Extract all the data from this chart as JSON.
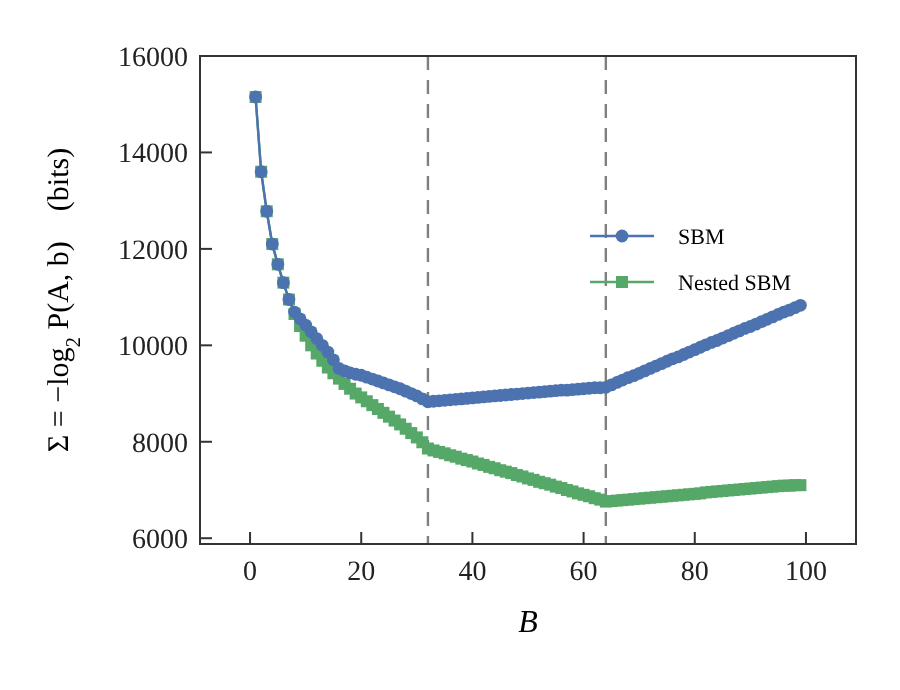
{
  "chart_data": {
    "type": "line",
    "xlabel": "B",
    "ylabel": "Σ = −log$_{2}$ P(A, b)    (bits)",
    "xlim": [
      -9,
      109
    ],
    "ylim": [
      5880,
      16000
    ],
    "xticks": [
      0,
      20,
      40,
      60,
      80,
      100
    ],
    "yticks": [
      6000,
      8000,
      10000,
      12000,
      14000,
      16000
    ],
    "grid": false,
    "legend": "right",
    "line_style": "solid",
    "ref_lines": [
      {
        "axis": "x",
        "value": 32,
        "color": "#7f7f7f",
        "line_style": "dashed"
      },
      {
        "axis": "x",
        "value": 64,
        "color": "#7f7f7f",
        "line_style": "dashed"
      }
    ],
    "x": [
      1,
      2,
      3,
      4,
      5,
      6,
      7,
      8,
      9,
      10,
      11,
      12,
      13,
      14,
      15,
      16,
      17,
      18,
      19,
      20,
      21,
      22,
      23,
      24,
      25,
      26,
      27,
      28,
      29,
      30,
      31,
      32,
      33,
      34,
      35,
      36,
      37,
      38,
      39,
      40,
      41,
      42,
      43,
      44,
      45,
      46,
      47,
      48,
      49,
      50,
      51,
      52,
      53,
      54,
      55,
      56,
      57,
      58,
      59,
      60,
      61,
      62,
      63,
      64,
      65,
      66,
      67,
      68,
      69,
      70,
      71,
      72,
      73,
      74,
      75,
      76,
      77,
      78,
      79,
      80,
      81,
      82,
      83,
      84,
      85,
      86,
      87,
      88,
      89,
      90,
      91,
      92,
      93,
      94,
      95,
      96,
      97,
      98,
      99
    ],
    "series": [
      {
        "name": "Nested SBM",
        "color": "#55a868",
        "marker": "square",
        "values": [
          15150,
          13600,
          12780,
          12100,
          11680,
          11300,
          10950,
          10650,
          10400,
          10200,
          10000,
          9830,
          9680,
          9540,
          9420,
          9310,
          9200,
          9100,
          9000,
          8920,
          8840,
          8760,
          8680,
          8600,
          8520,
          8440,
          8360,
          8270,
          8180,
          8090,
          7990,
          7860,
          7820,
          7790,
          7760,
          7720,
          7690,
          7650,
          7620,
          7590,
          7550,
          7520,
          7480,
          7450,
          7410,
          7380,
          7350,
          7310,
          7280,
          7240,
          7210,
          7170,
          7140,
          7110,
          7070,
          7040,
          7000,
          6970,
          6930,
          6900,
          6870,
          6830,
          6800,
          6760,
          6770,
          6780,
          6790,
          6800,
          6810,
          6820,
          6830,
          6840,
          6850,
          6860,
          6870,
          6880,
          6890,
          6900,
          6910,
          6920,
          6930,
          6950,
          6960,
          6970,
          6980,
          6990,
          7000,
          7010,
          7020,
          7030,
          7040,
          7050,
          7060,
          7070,
          7080,
          7090,
          7090,
          7100,
          7100
        ]
      },
      {
        "name": "SBM",
        "color": "#4c72b0",
        "marker": "circle",
        "values": [
          15150,
          13600,
          12780,
          12100,
          11680,
          11300,
          10950,
          10690,
          10550,
          10420,
          10280,
          10140,
          10000,
          9860,
          9700,
          9520,
          9470,
          9430,
          9400,
          9380,
          9340,
          9300,
          9260,
          9220,
          9180,
          9140,
          9100,
          9050,
          9000,
          8950,
          8890,
          8830,
          8840,
          8850,
          8860,
          8870,
          8880,
          8890,
          8900,
          8910,
          8920,
          8930,
          8940,
          8950,
          8960,
          8970,
          8980,
          8990,
          9000,
          9010,
          9020,
          9030,
          9040,
          9050,
          9060,
          9070,
          9070,
          9080,
          9090,
          9100,
          9110,
          9120,
          9120,
          9130,
          9180,
          9230,
          9280,
          9330,
          9370,
          9420,
          9470,
          9520,
          9570,
          9620,
          9670,
          9720,
          9760,
          9810,
          9860,
          9910,
          9960,
          10010,
          10060,
          10100,
          10150,
          10200,
          10250,
          10300,
          10350,
          10390,
          10440,
          10490,
          10540,
          10590,
          10640,
          10690,
          10730,
          10780,
          10830
        ]
      }
    ]
  }
}
